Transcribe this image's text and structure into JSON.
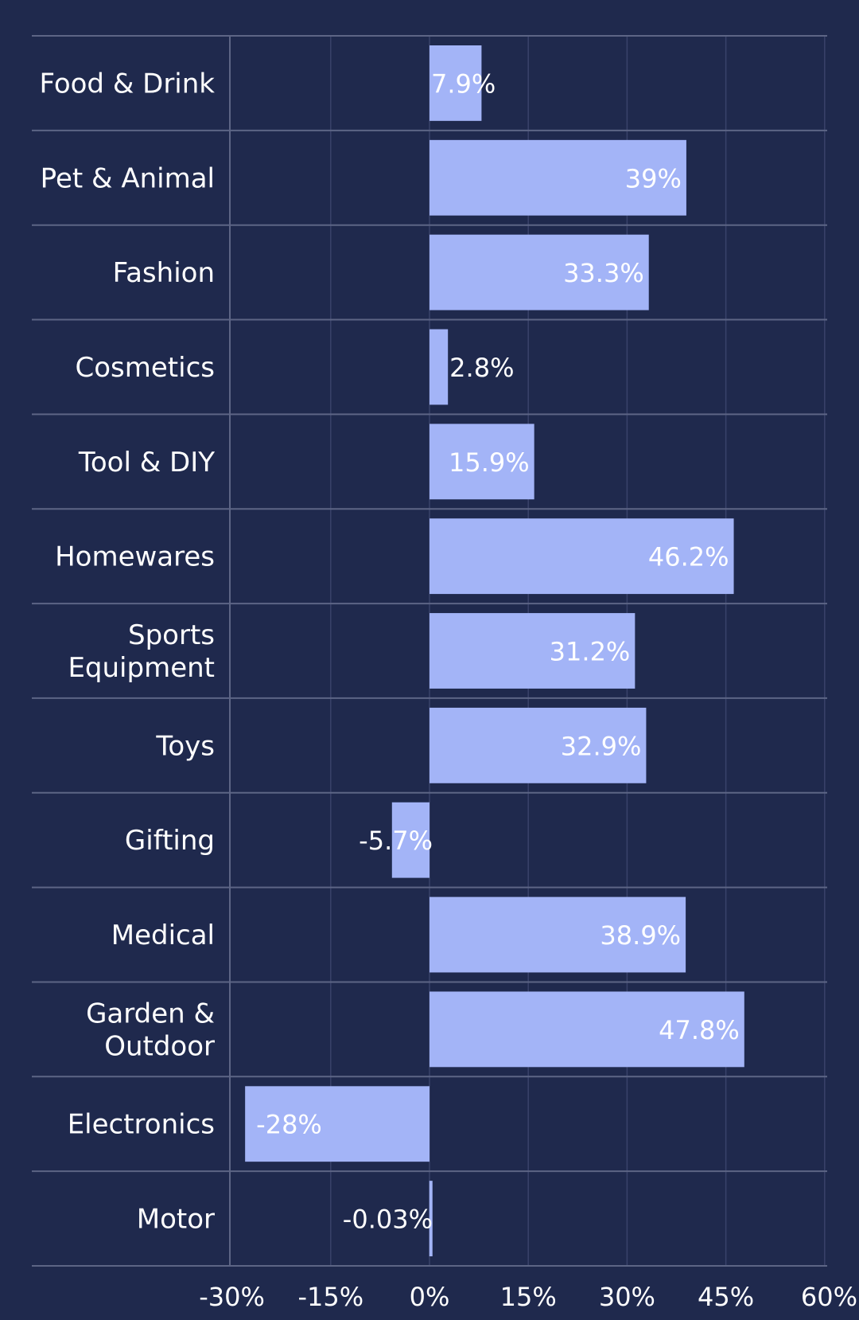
{
  "chart_data": {
    "type": "bar",
    "orientation": "horizontal",
    "categories": [
      "Food & Drink",
      "Pet & Animal",
      "Fashion",
      "Cosmetics",
      "Tool & DIY",
      "Homewares",
      "Sports Equipment",
      "Toys",
      "Gifting",
      "Medical",
      "Garden & Outdoor",
      "Electronics",
      "Motor"
    ],
    "values": [
      7.9,
      39,
      33.3,
      2.8,
      15.9,
      46.2,
      31.2,
      32.9,
      -5.7,
      38.9,
      47.8,
      -28,
      -0.03
    ],
    "value_labels": [
      "7.9%",
      "39%",
      "33.3%",
      "2.8%",
      "15.9%",
      "46.2%",
      "31.2%",
      "32.9%",
      "-5.7%",
      "38.9%",
      "47.8%",
      "-28%",
      "-0.03%"
    ],
    "xlim": [
      -30,
      60
    ],
    "x_ticks": [
      -30,
      -15,
      0,
      15,
      30,
      45,
      60
    ],
    "x_tick_labels": [
      "-30%",
      "-15%",
      "0%",
      "15%",
      "30%",
      "45%",
      "60%"
    ],
    "title": "",
    "xlabel": "",
    "ylabel": "",
    "grid": true,
    "colors": {
      "background": "#1f294d",
      "bar": "#a3b4f7",
      "text": "#ffffff",
      "grid": "#39426a",
      "rule": "#5d6585"
    }
  }
}
